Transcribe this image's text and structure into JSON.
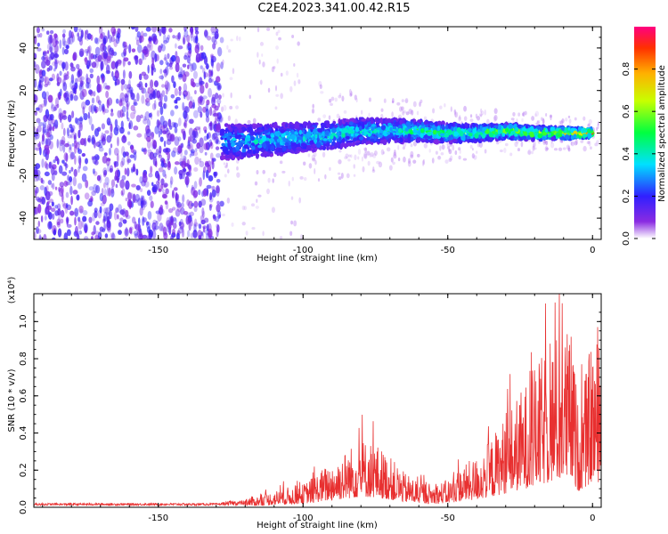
{
  "title": "C2E4.2023.341.00.42.R15",
  "colors": {
    "snr_line": "#e83030",
    "scatter_noise": "#8a2be2",
    "axis": "#000000"
  },
  "chart_data": [
    {
      "type": "heatmap",
      "xlabel": "Height of straight line (km)",
      "ylabel": "Frequency (Hz)",
      "xlim": [
        -193,
        3
      ],
      "ylim": [
        -50,
        50
      ],
      "x_ticks": [
        -150,
        -100,
        -50,
        0
      ],
      "x_tick_labels": [
        "-150",
        "-100",
        "-50",
        "0"
      ],
      "y_ticks": [
        -40,
        -20,
        0,
        20,
        40
      ],
      "y_tick_labels": [
        "-40",
        "-20",
        "0",
        "20",
        "40"
      ],
      "colorbar": {
        "label": "Normalized spectral amplitude",
        "range": [
          0,
          1
        ],
        "ticks": [
          0.0,
          0.2,
          0.4,
          0.6,
          0.8
        ],
        "tick_labels": [
          "0.0",
          "0.2",
          "0.4",
          "0.6",
          "0.8"
        ]
      },
      "ridge": {
        "x": [
          -128,
          -120,
          -110,
          -100,
          -90,
          -80,
          -70,
          -60,
          -50,
          -40,
          -30,
          -20,
          -10,
          0
        ],
        "freq_center": [
          -4,
          -4,
          -3,
          -2,
          -1,
          1,
          1,
          1,
          0,
          0,
          1,
          0,
          0,
          0
        ],
        "amplitude": [
          0.35,
          0.4,
          0.4,
          0.4,
          0.45,
          0.45,
          0.45,
          0.5,
          0.5,
          0.55,
          0.6,
          0.65,
          0.75,
          0.85
        ]
      }
    },
    {
      "type": "line",
      "xlabel": "Height of straight line (km)",
      "ylabel": "SNR (10 * v/v)",
      "y_scale_label": "(x10⁴)",
      "xlim": [
        -193,
        3
      ],
      "ylim": [
        0,
        1.15
      ],
      "x_ticks": [
        -150,
        -100,
        -50,
        0
      ],
      "x_tick_labels": [
        "-150",
        "-100",
        "-50",
        "0"
      ],
      "y_ticks": [
        0.0,
        0.2,
        0.4,
        0.6,
        0.8,
        1.0
      ],
      "y_tick_labels": [
        "0.0",
        "0.2",
        "0.4",
        "0.6",
        "0.8",
        "1.0"
      ],
      "envelope": {
        "x": [
          -193,
          -170,
          -150,
          -130,
          -125,
          -115,
          -108,
          -100,
          -95,
          -90,
          -85,
          -80,
          -75,
          -70,
          -65,
          -60,
          -55,
          -50,
          -45,
          -40,
          -35,
          -30,
          -25,
          -20,
          -15,
          -10,
          -7,
          -5,
          -2,
          0,
          3
        ],
        "y": [
          0.02,
          0.02,
          0.02,
          0.02,
          0.04,
          0.05,
          0.08,
          0.1,
          0.15,
          0.2,
          0.25,
          0.3,
          0.28,
          0.22,
          0.15,
          0.12,
          0.1,
          0.12,
          0.18,
          0.22,
          0.3,
          0.4,
          0.5,
          0.6,
          0.7,
          0.8,
          0.75,
          0.45,
          0.6,
          0.75,
          0.7
        ]
      }
    }
  ]
}
